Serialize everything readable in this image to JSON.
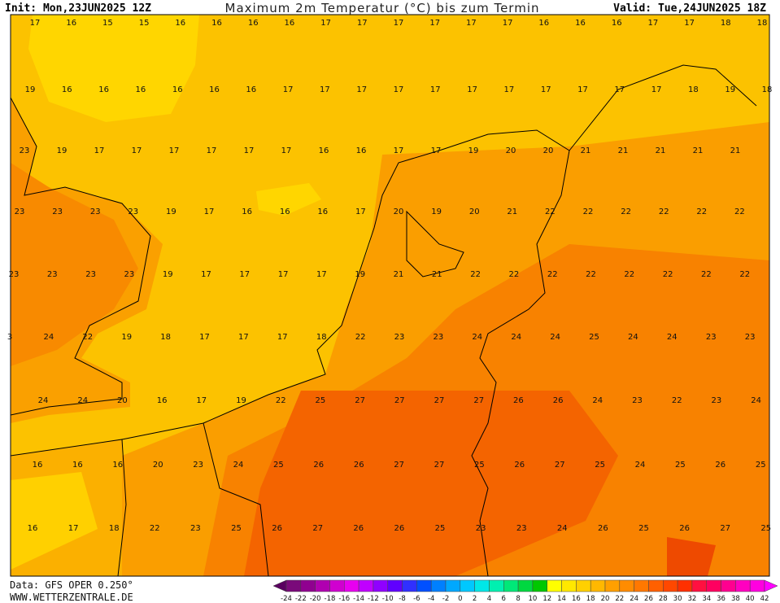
{
  "header": {
    "init": "Init: Mon,23JUN2025 12Z",
    "title": "Maximum 2m Temperatur (°C) bis zum Termin",
    "valid": "Valid: Tue,24JUN2025 18Z"
  },
  "map": {
    "rows": [
      [
        17,
        16,
        15,
        15,
        16,
        16,
        16,
        16,
        17,
        17,
        17,
        17,
        17,
        17,
        16,
        16,
        16,
        17,
        17,
        18,
        18
      ],
      [
        19,
        16,
        16,
        16,
        16,
        16,
        16,
        17,
        17,
        17,
        17,
        17,
        17,
        17,
        17,
        17,
        17,
        17,
        18,
        19,
        18
      ],
      [
        23,
        19,
        17,
        17,
        17,
        17,
        17,
        17,
        16,
        16,
        17,
        17,
        19,
        20,
        20,
        21,
        21,
        21,
        21,
        21
      ],
      [
        23,
        23,
        23,
        23,
        19,
        17,
        16,
        16,
        16,
        17,
        20,
        19,
        20,
        21,
        22,
        22,
        22,
        22,
        22,
        22
      ],
      [
        23,
        23,
        23,
        23,
        19,
        17,
        17,
        17,
        17,
        19,
        21,
        21,
        22,
        22,
        22,
        22,
        22,
        22,
        22,
        22
      ],
      [
        3,
        24,
        22,
        19,
        18,
        17,
        17,
        17,
        18,
        22,
        23,
        23,
        24,
        24,
        24,
        25,
        24,
        24,
        23,
        23
      ],
      [
        24,
        24,
        20,
        16,
        17,
        19,
        22,
        25,
        27,
        27,
        27,
        27,
        26,
        26,
        24,
        23,
        22,
        23,
        24
      ],
      [
        16,
        16,
        16,
        20,
        23,
        24,
        25,
        26,
        26,
        27,
        27,
        25,
        26,
        27,
        25,
        24,
        25,
        26,
        25
      ],
      [
        16,
        17,
        18,
        22,
        23,
        25,
        26,
        27,
        26,
        26,
        25,
        23,
        23,
        24,
        26,
        25,
        26,
        27,
        25
      ]
    ]
  },
  "footer": {
    "source": "Data: GFS OPER 0.250°",
    "site": "WWW.WETTERZENTRALE.DE"
  },
  "colorbar": {
    "ticks": [
      -24,
      -22,
      -20,
      -18,
      -16,
      -14,
      -12,
      -10,
      -8,
      -6,
      -4,
      -2,
      0,
      2,
      4,
      6,
      8,
      10,
      12,
      14,
      16,
      18,
      20,
      22,
      24,
      26,
      28,
      30,
      32,
      34,
      36,
      38,
      40,
      42
    ],
    "colors": [
      "#5a0060",
      "#7a0a7a",
      "#900090",
      "#b000b0",
      "#d000d0",
      "#e800f0",
      "#c000ff",
      "#9000ff",
      "#6000ff",
      "#3030ff",
      "#0050ff",
      "#0080ff",
      "#00a8ff",
      "#00c8ff",
      "#00e8e8",
      "#00f0b0",
      "#00e878",
      "#00d840",
      "#00c800",
      "#ffff00",
      "#ffe800",
      "#ffd000",
      "#ffb800",
      "#ffa000",
      "#ff8c00",
      "#ff7800",
      "#ff6000",
      "#ff4800",
      "#ff3000",
      "#ff1040",
      "#ff0060",
      "#ff0090",
      "#ff00c0",
      "#ff00e0",
      "#ff00ff"
    ]
  }
}
